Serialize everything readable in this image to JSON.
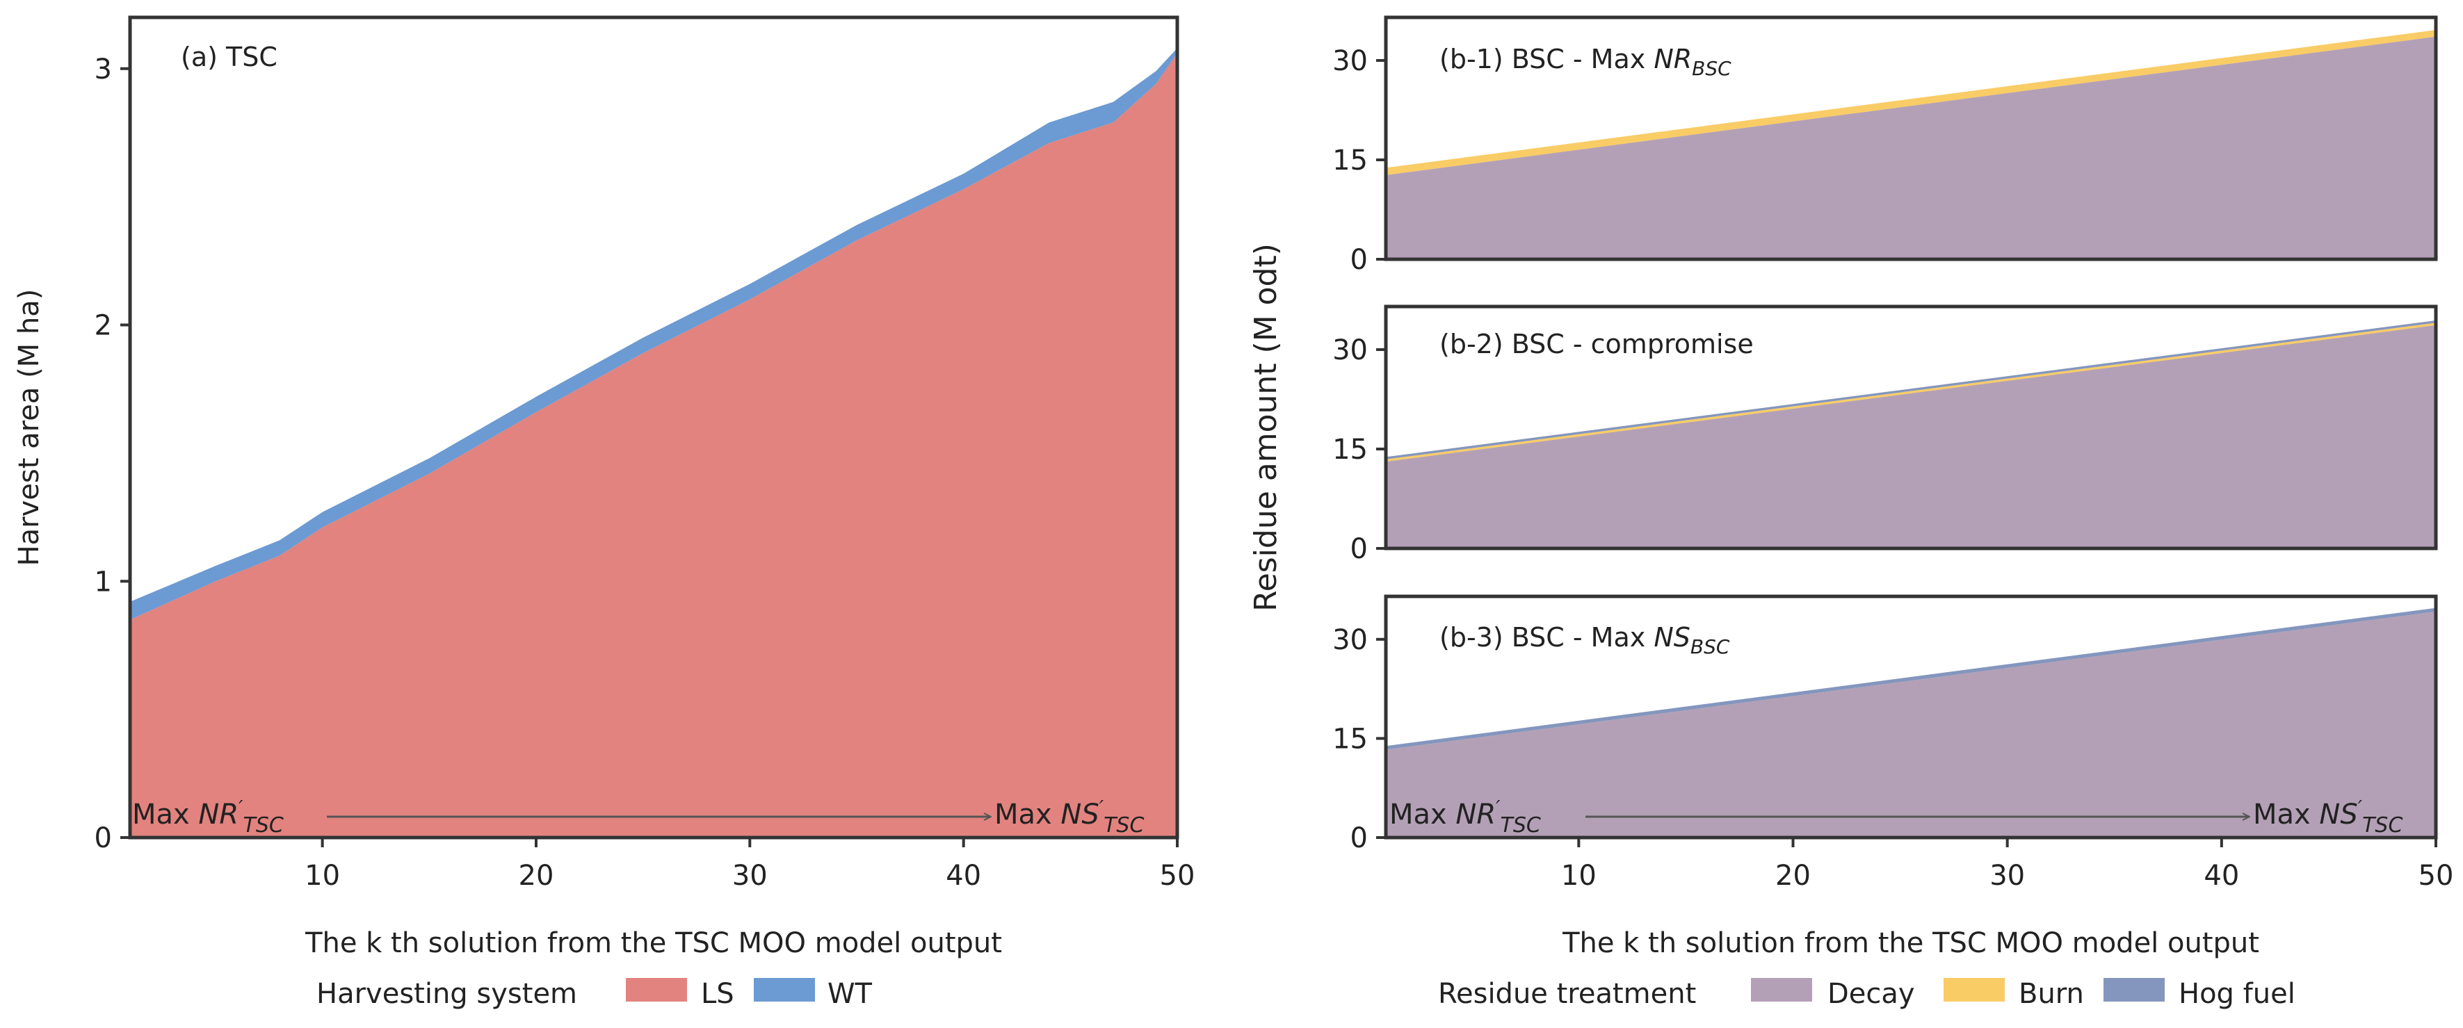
{
  "colors": {
    "ls": "#e2837f",
    "wt": "#6c9ad2",
    "decay": "#b4a0b6",
    "burn": "#f9cc66",
    "hog": "#8496bd",
    "axis": "#333333",
    "arrow": "#555555"
  },
  "shared": {
    "xlabel": "The k th solution from the TSC MOO model output",
    "arrow_left": [
      "Max ",
      "NR",
      "′",
      "TSC"
    ],
    "arrow_right": [
      "Max ",
      "NS",
      "′",
      "TSC"
    ]
  },
  "chart_data": [
    {
      "id": "a",
      "type": "area",
      "title": "(a) TSC",
      "ylabel": "Harvest area (M ha)",
      "xlim": [
        1,
        50
      ],
      "ylim": [
        0,
        3.2
      ],
      "yticks": [
        "0",
        "1",
        "2",
        "3"
      ],
      "ytick_values": [
        0,
        1,
        2,
        3
      ],
      "xticks": [
        "10",
        "20",
        "30",
        "40",
        "50"
      ],
      "xtick_values": [
        10,
        20,
        30,
        40,
        50
      ],
      "x": [
        1,
        5,
        8,
        10,
        15,
        20,
        25,
        30,
        35,
        40,
        44,
        47,
        49,
        50
      ],
      "series": [
        {
          "name": "LS",
          "values": [
            0.85,
            1.0,
            1.1,
            1.21,
            1.42,
            1.66,
            1.89,
            2.1,
            2.33,
            2.53,
            2.71,
            2.79,
            2.94,
            3.06
          ]
        },
        {
          "name": "WT",
          "values": [
            0.07,
            0.06,
            0.06,
            0.06,
            0.06,
            0.06,
            0.06,
            0.06,
            0.06,
            0.06,
            0.08,
            0.08,
            0.05,
            0.02
          ]
        }
      ],
      "legend": {
        "title": "Harvesting system",
        "entries": [
          "LS",
          "WT"
        ],
        "placement": "bottom"
      }
    },
    {
      "id": "b1",
      "type": "area",
      "title_parts": [
        "(b-1) BSC - Max ",
        "NR",
        "BSC"
      ],
      "ylim": [
        0,
        36.5
      ],
      "yticks": [
        "0",
        "15",
        "30"
      ],
      "ytick_values": [
        0,
        15,
        30
      ],
      "xlim": [
        1,
        50
      ],
      "x": [
        1,
        50
      ],
      "series": [
        {
          "name": "Decay",
          "values": [
            12.7,
            33.6
          ]
        },
        {
          "name": "Burn",
          "values": [
            1.1,
            1.0
          ]
        },
        {
          "name": "Hog fuel",
          "values": [
            0.0,
            0.0
          ]
        }
      ]
    },
    {
      "id": "b2",
      "type": "area",
      "title": "(b-2) BSC - compromise",
      "ylim": [
        0,
        36.5
      ],
      "yticks": [
        "0",
        "15",
        "30"
      ],
      "ytick_values": [
        0,
        15,
        30
      ],
      "xlim": [
        1,
        50
      ],
      "x": [
        1,
        50
      ],
      "series": [
        {
          "name": "Decay",
          "values": [
            13.1,
            33.7
          ]
        },
        {
          "name": "Burn",
          "values": [
            0.35,
            0.35
          ]
        },
        {
          "name": "Hog fuel",
          "values": [
            0.35,
            0.35
          ]
        }
      ]
    },
    {
      "id": "b3",
      "type": "area",
      "title_parts": [
        "(b-3) BSC - Max ",
        "NS",
        "BSC"
      ],
      "ylim": [
        0,
        36.5
      ],
      "yticks": [
        "0",
        "15",
        "30"
      ],
      "ytick_values": [
        0,
        15,
        30
      ],
      "xlim": [
        1,
        50
      ],
      "xticks": [
        "10",
        "20",
        "30",
        "40",
        "50"
      ],
      "xtick_values": [
        10,
        20,
        30,
        40,
        50
      ],
      "x": [
        1,
        50
      ],
      "series": [
        {
          "name": "Decay",
          "values": [
            13.3,
            34.2
          ]
        },
        {
          "name": "Burn",
          "values": [
            0.0,
            0.0
          ]
        },
        {
          "name": "Hog fuel",
          "values": [
            0.55,
            0.55
          ]
        }
      ],
      "legend": {
        "title": "Residue treatment",
        "entries": [
          "Decay",
          "Burn",
          "Hog fuel"
        ],
        "placement": "bottom"
      }
    }
  ],
  "panel_b_ylabel": "Residue amount (M odt)"
}
